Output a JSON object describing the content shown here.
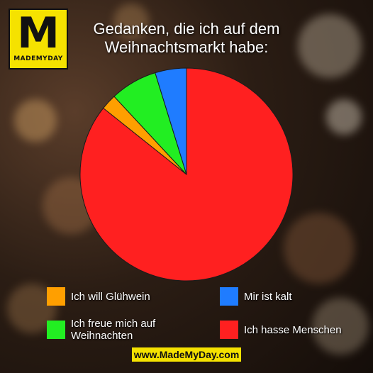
{
  "logo": {
    "letter": "M",
    "text": "MADEMYDAY"
  },
  "footer": {
    "text": "www.MadeMyDay.com"
  },
  "colors": {
    "orange": "#ff9f00",
    "green": "#22ee22",
    "blue": "#1f7cff",
    "red": "#ff2020"
  },
  "chart_data": {
    "type": "pie",
    "title": "Gedanken, die ich auf dem Weihnachtsmarkt habe:",
    "slices": [
      {
        "label": "Ich hasse Menschen",
        "value": 90,
        "color": "#ff2020"
      },
      {
        "label": "Ich will Glühwein",
        "value": 2.5,
        "color": "#ff9f00"
      },
      {
        "label": "Ich freue mich auf Weihnachten",
        "value": 7.5,
        "color": "#22ee22"
      },
      {
        "label": "Mir ist kalt",
        "value": 5,
        "color": "#1f7cff"
      }
    ],
    "legend": [
      {
        "label": "Ich will Glühwein",
        "color": "#ff9f00"
      },
      {
        "label": "Mir ist kalt",
        "color": "#1f7cff"
      },
      {
        "label": "Ich freue mich auf Weihnachten",
        "color": "#22ee22"
      },
      {
        "label": "Ich hasse Menschen",
        "color": "#ff2020"
      }
    ],
    "legend_placement": "bottom"
  }
}
